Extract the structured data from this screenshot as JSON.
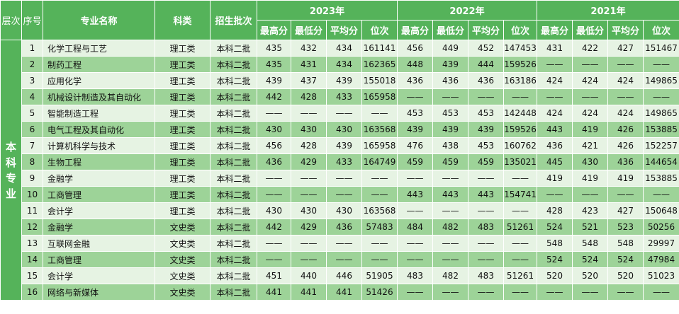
{
  "header": {
    "level": "层次",
    "index": "序号",
    "major": "专业名称",
    "category": "科类",
    "batch": "招生批次",
    "years": [
      {
        "label": "2023年",
        "columns": [
          "最高分",
          "最低分",
          "平均分",
          "位次"
        ]
      },
      {
        "label": "2022年",
        "columns": [
          "最高分",
          "最低分",
          "平均分",
          "位次"
        ]
      },
      {
        "label": "2021年",
        "columns": [
          "最高分",
          "最低分",
          "平均分",
          "位次"
        ]
      }
    ]
  },
  "level": "本科专业",
  "rows": [
    {
      "index": "1",
      "major": "化学工程与工艺",
      "category": "理工类",
      "batch": "本科二批",
      "scores": [
        "435",
        "432",
        "434",
        "161141",
        "456",
        "449",
        "452",
        "147453",
        "431",
        "422",
        "427",
        "151467"
      ]
    },
    {
      "index": "2",
      "major": "制药工程",
      "category": "理工类",
      "batch": "本科二批",
      "scores": [
        "435",
        "431",
        "434",
        "162365",
        "448",
        "439",
        "444",
        "159526",
        "——",
        "——",
        "——",
        "——"
      ]
    },
    {
      "index": "3",
      "major": "应用化学",
      "category": "理工类",
      "batch": "本科二批",
      "scores": [
        "439",
        "437",
        "439",
        "155018",
        "436",
        "436",
        "436",
        "163186",
        "424",
        "424",
        "424",
        "149865"
      ]
    },
    {
      "index": "4",
      "major": "机械设计制造及其自动化",
      "category": "理工类",
      "batch": "本科二批",
      "scores": [
        "442",
        "428",
        "433",
        "165958",
        "——",
        "——",
        "——",
        "——",
        "——",
        "——",
        "——",
        "——"
      ]
    },
    {
      "index": "5",
      "major": "智能制造工程",
      "category": "理工类",
      "batch": "本科二批",
      "scores": [
        "——",
        "——",
        "——",
        "——",
        "453",
        "453",
        "453",
        "142448",
        "424",
        "424",
        "424",
        "149865"
      ]
    },
    {
      "index": "6",
      "major": "电气工程及其自动化",
      "category": "理工类",
      "batch": "本科二批",
      "scores": [
        "430",
        "430",
        "430",
        "163568",
        "439",
        "439",
        "439",
        "159526",
        "443",
        "419",
        "426",
        "153885"
      ]
    },
    {
      "index": "7",
      "major": "计算机科学与技术",
      "category": "理工类",
      "batch": "本科二批",
      "scores": [
        "456",
        "428",
        "439",
        "165958",
        "476",
        "438",
        "453",
        "160762",
        "436",
        "421",
        "426",
        "152257"
      ]
    },
    {
      "index": "8",
      "major": "生物工程",
      "category": "理工类",
      "batch": "本科二批",
      "scores": [
        "436",
        "429",
        "433",
        "164749",
        "459",
        "459",
        "459",
        "135021",
        "445",
        "430",
        "436",
        "144654"
      ]
    },
    {
      "index": "9",
      "major": "金融学",
      "category": "理工类",
      "batch": "本科二批",
      "scores": [
        "——",
        "——",
        "——",
        "——",
        "——",
        "——",
        "——",
        "——",
        "419",
        "419",
        "419",
        "153885"
      ]
    },
    {
      "index": "10",
      "major": "工商管理",
      "category": "理工类",
      "batch": "本科二批",
      "scores": [
        "——",
        "——",
        "——",
        "——",
        "443",
        "443",
        "443",
        "154741",
        "——",
        "——",
        "——",
        "——"
      ]
    },
    {
      "index": "11",
      "major": "会计学",
      "category": "理工类",
      "batch": "本科二批",
      "scores": [
        "430",
        "430",
        "430",
        "163568",
        "——",
        "——",
        "——",
        "——",
        "428",
        "423",
        "427",
        "150648"
      ]
    },
    {
      "index": "12",
      "major": "金融学",
      "category": "文史类",
      "batch": "本科二批",
      "scores": [
        "442",
        "429",
        "436",
        "57483",
        "484",
        "482",
        "483",
        "51261",
        "524",
        "521",
        "523",
        "50256"
      ]
    },
    {
      "index": "13",
      "major": "互联网金融",
      "category": "文史类",
      "batch": "本科二批",
      "scores": [
        "——",
        "——",
        "——",
        "——",
        "——",
        "——",
        "——",
        "——",
        "548",
        "548",
        "548",
        "29997"
      ]
    },
    {
      "index": "14",
      "major": "工商管理",
      "category": "文史类",
      "batch": "本科二批",
      "scores": [
        "——",
        "——",
        "——",
        "——",
        "——",
        "——",
        "——",
        "——",
        "524",
        "524",
        "524",
        "47984"
      ]
    },
    {
      "index": "15",
      "major": "会计学",
      "category": "文史类",
      "batch": "本科二批",
      "scores": [
        "451",
        "440",
        "446",
        "51905",
        "483",
        "482",
        "483",
        "51261",
        "520",
        "520",
        "520",
        "51023"
      ]
    },
    {
      "index": "16",
      "major": "网络与新媒体",
      "category": "文史类",
      "batch": "本科二批",
      "scores": [
        "441",
        "441",
        "441",
        "51426",
        "——",
        "——",
        "——",
        "——",
        "——",
        "——",
        "——",
        "——"
      ]
    }
  ]
}
